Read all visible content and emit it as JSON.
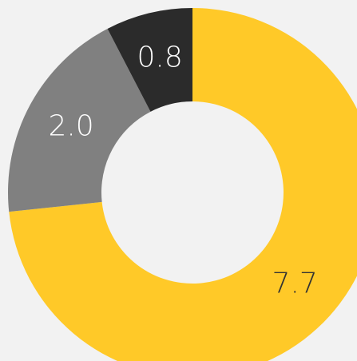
{
  "chart_data": {
    "type": "donut",
    "values": [
      7.7,
      2.0,
      0.8
    ],
    "value_labels": [
      "7.7",
      "2.0",
      "0.8"
    ],
    "colors": [
      "#ffc928",
      "#808080",
      "#2b2b2b"
    ]
  }
}
